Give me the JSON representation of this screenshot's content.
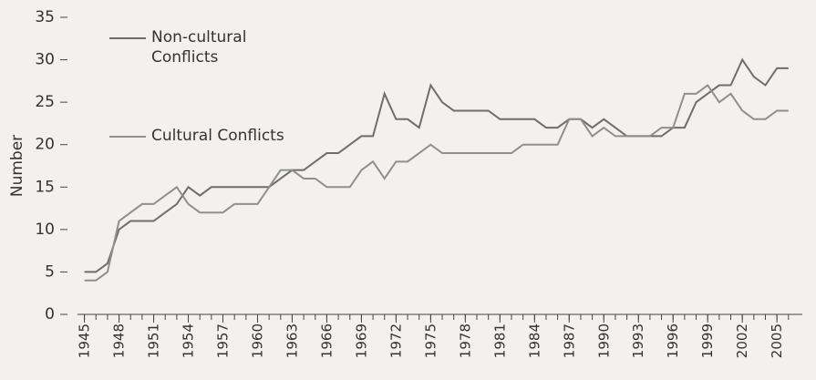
{
  "chart_data": {
    "type": "line",
    "y_label": "Number",
    "x": [
      1945,
      1946,
      1947,
      1948,
      1949,
      1950,
      1951,
      1952,
      1953,
      1954,
      1955,
      1956,
      1957,
      1958,
      1959,
      1960,
      1961,
      1962,
      1963,
      1964,
      1965,
      1966,
      1967,
      1968,
      1969,
      1970,
      1971,
      1972,
      1973,
      1974,
      1975,
      1976,
      1977,
      1978,
      1979,
      1980,
      1981,
      1982,
      1983,
      1984,
      1985,
      1986,
      1987,
      1988,
      1989,
      1990,
      1991,
      1992,
      1993,
      1994,
      1995,
      1996,
      1997,
      1998,
      1999,
      2000,
      2001,
      2002,
      2003,
      2004,
      2005,
      2006
    ],
    "series": [
      {
        "name": "Non-cultural Conflicts",
        "color": "#6e6e6e",
        "values": [
          5,
          5,
          6,
          10,
          11,
          11,
          11,
          12,
          13,
          15,
          14,
          15,
          15,
          15,
          15,
          15,
          15,
          16,
          17,
          17,
          18,
          19,
          19,
          20,
          21,
          21,
          26,
          23,
          23,
          22,
          27,
          25,
          24,
          24,
          24,
          24,
          23,
          23,
          23,
          23,
          22,
          22,
          23,
          23,
          22,
          23,
          22,
          21,
          21,
          21,
          21,
          22,
          22,
          25,
          26,
          27,
          27,
          30,
          28,
          27,
          29,
          29
        ]
      },
      {
        "name": "Cultural Conflicts",
        "color": "#8f8f8f",
        "values": [
          4,
          4,
          5,
          11,
          12,
          13,
          13,
          14,
          15,
          13,
          12,
          12,
          12,
          13,
          13,
          13,
          15,
          17,
          17,
          16,
          16,
          15,
          15,
          15,
          17,
          18,
          16,
          18,
          18,
          19,
          20,
          19,
          19,
          19,
          19,
          19,
          19,
          19,
          20,
          20,
          20,
          20,
          23,
          23,
          21,
          22,
          21,
          21,
          21,
          21,
          22,
          22,
          26,
          26,
          27,
          25,
          26,
          24,
          23,
          23,
          24,
          24
        ]
      }
    ],
    "xlim": [
      1944.4,
      2007.2
    ],
    "xticks": [
      1945,
      1948,
      1951,
      1954,
      1957,
      1960,
      1963,
      1966,
      1969,
      1972,
      1975,
      1978,
      1981,
      1984,
      1987,
      1990,
      1993,
      1996,
      1999,
      2002,
      2005
    ],
    "ylim": [
      0,
      35
    ],
    "yticks": [
      0,
      5,
      10,
      15,
      20,
      25,
      30,
      35
    ],
    "grid": false
  }
}
